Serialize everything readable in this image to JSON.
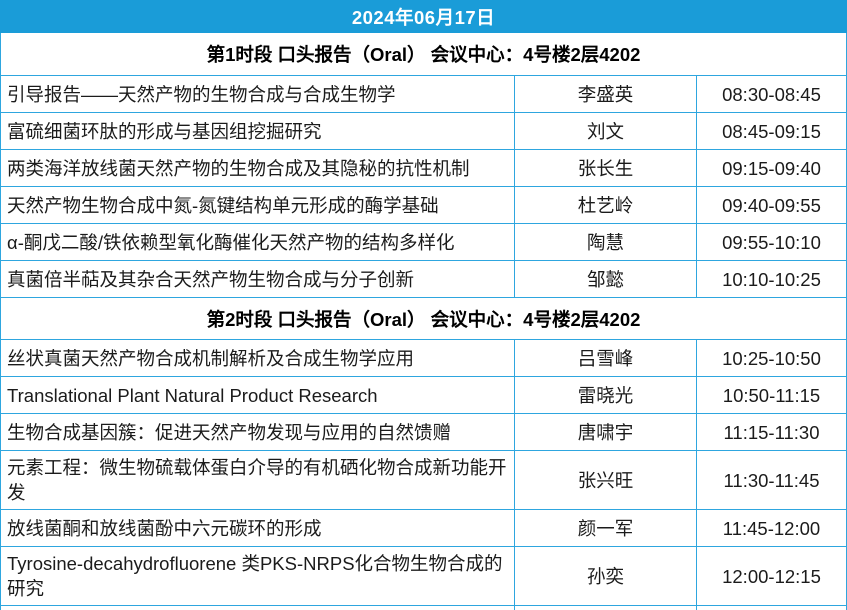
{
  "page": {
    "date_title": "2024年06月17日"
  },
  "colors": {
    "header_bg": "#1a9cd8",
    "border": "#2ea6df",
    "title_text": "#ffffff",
    "body_text": "#1b1b1b"
  },
  "table": {
    "columns": [
      "title",
      "speaker",
      "time"
    ],
    "sections": [
      {
        "header": "第1时段 口头报告（Oral） 会议中心：4号楼2层4202",
        "rows": [
          {
            "title": "引导报告——天然产物的生物合成与合成生物学",
            "speaker": "李盛英",
            "time": "08:30-08:45"
          },
          {
            "title": "富硫细菌环肽的形成与基因组挖掘研究",
            "speaker": "刘文",
            "time": "08:45-09:15"
          },
          {
            "title": "两类海洋放线菌天然产物的生物合成及其隐秘的抗性机制",
            "speaker": "张长生",
            "time": "09:15-09:40"
          },
          {
            "title": "天然产物生物合成中氮-氮键结构单元形成的酶学基础",
            "speaker": "杜艺岭",
            "time": "09:40-09:55"
          },
          {
            "title": "α-酮戊二酸/铁依赖型氧化酶催化天然产物的结构多样化",
            "speaker": "陶慧",
            "time": "09:55-10:10"
          },
          {
            "title": "真菌倍半萜及其杂合天然产物生物合成与分子创新",
            "speaker": "邹懿",
            "time": "10:10-10:25"
          }
        ]
      },
      {
        "header": "第2时段 口头报告（Oral） 会议中心：4号楼2层4202",
        "rows": [
          {
            "title": "丝状真菌天然产物合成机制解析及合成生物学应用",
            "speaker": "吕雪峰",
            "time": "10:25-10:50"
          },
          {
            "title": "Translational Plant Natural Product Research",
            "speaker": "雷晓光",
            "time": "10:50-11:15"
          },
          {
            "title": "生物合成基因簇：促进天然产物发现与应用的自然馈赠",
            "speaker": "唐啸宇",
            "time": "11:15-11:30"
          },
          {
            "title": "元素工程：微生物硫载体蛋白介导的有机硒化物合成新功能开发",
            "speaker": "张兴旺",
            "time": "11:30-11:45"
          },
          {
            "title": "放线菌酮和放线菌酚中六元碳环的形成",
            "speaker": "颜一军",
            "time": "11:45-12:00"
          },
          {
            "title": "Tyrosine-decahydrofluorene 类PKS-NRPS化合物生物合成的研究",
            "speaker": "孙奕",
            "time": "12:00-12:15"
          }
        ]
      }
    ]
  }
}
